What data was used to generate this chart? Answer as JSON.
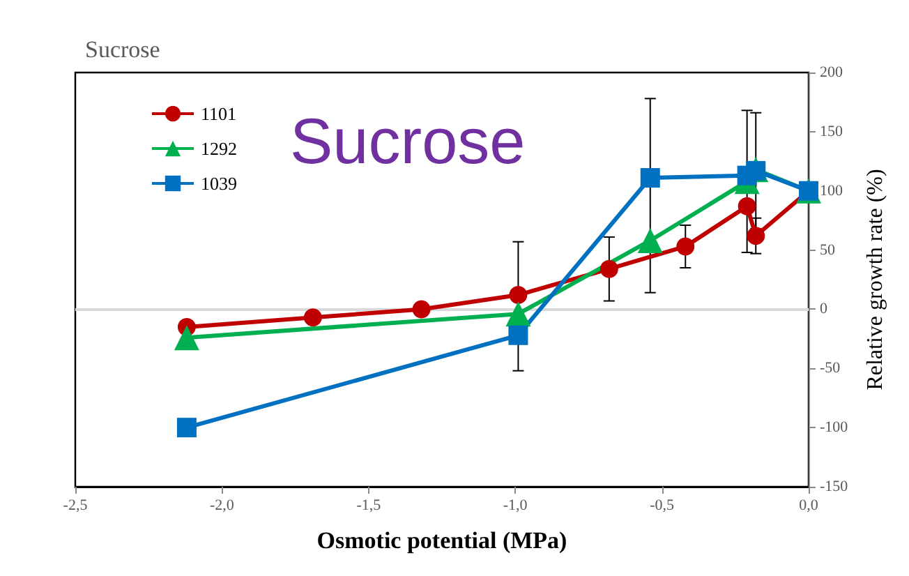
{
  "chart_data": {
    "type": "line",
    "title": "Sucrose",
    "annotations": [
      "Sucrose"
    ],
    "xlabel": "Osmotic potential (MPa)",
    "ylabel": "Relative growth rate (%)",
    "xlim": [
      -2.5,
      0
    ],
    "xticks": [
      {
        "value": -2.5,
        "label": "-2,5"
      },
      {
        "value": -2,
        "label": "-2,0"
      },
      {
        "value": -1.5,
        "label": "-1,5"
      },
      {
        "value": -1,
        "label": "-1,0"
      },
      {
        "value": -0.5,
        "label": "-0,5"
      },
      {
        "value": 0,
        "label": "0,0"
      }
    ],
    "ylim": [
      -150,
      200
    ],
    "yticks": [
      -150,
      -100,
      -50,
      0,
      50,
      100,
      150,
      200
    ],
    "ref_lines": [
      {
        "axis": "y",
        "value": 0,
        "color": "#d9d9d9"
      }
    ],
    "grid": false,
    "legend": "top left",
    "line_style": "solid",
    "series": [
      {
        "name": "1101",
        "color": "#c00000",
        "marker": "circle",
        "x": [
          -2.12,
          -1.69,
          -1.32,
          -0.99,
          -0.68,
          -0.42,
          -0.21,
          -0.18,
          0
        ],
        "values": [
          -15,
          -7,
          0,
          12,
          34,
          53,
          87,
          62,
          100
        ],
        "errors": [
          null,
          null,
          null,
          null,
          [
            7,
            61
          ],
          [
            35,
            71
          ],
          null,
          [
            47,
            77
          ],
          null
        ]
      },
      {
        "name": "1292",
        "color": "#00b050",
        "marker": "triangle",
        "x": [
          -2.12,
          -0.99,
          -0.54,
          -0.21,
          -0.18,
          0
        ],
        "values": [
          -24,
          -4,
          58,
          108,
          118,
          100
        ],
        "errors": [
          null,
          null,
          [
            14,
            178
          ],
          [
            48,
            168
          ],
          null,
          null
        ]
      },
      {
        "name": "1039",
        "color": "#0070c0",
        "marker": "square",
        "x": [
          -2.12,
          -0.99,
          -0.54,
          -0.21,
          -0.18,
          0
        ],
        "values": [
          -100,
          -22,
          111,
          113,
          117,
          100
        ],
        "errors": [
          null,
          [
            -52,
            57
          ],
          null,
          null,
          [
            68,
            166
          ],
          null
        ]
      }
    ]
  }
}
